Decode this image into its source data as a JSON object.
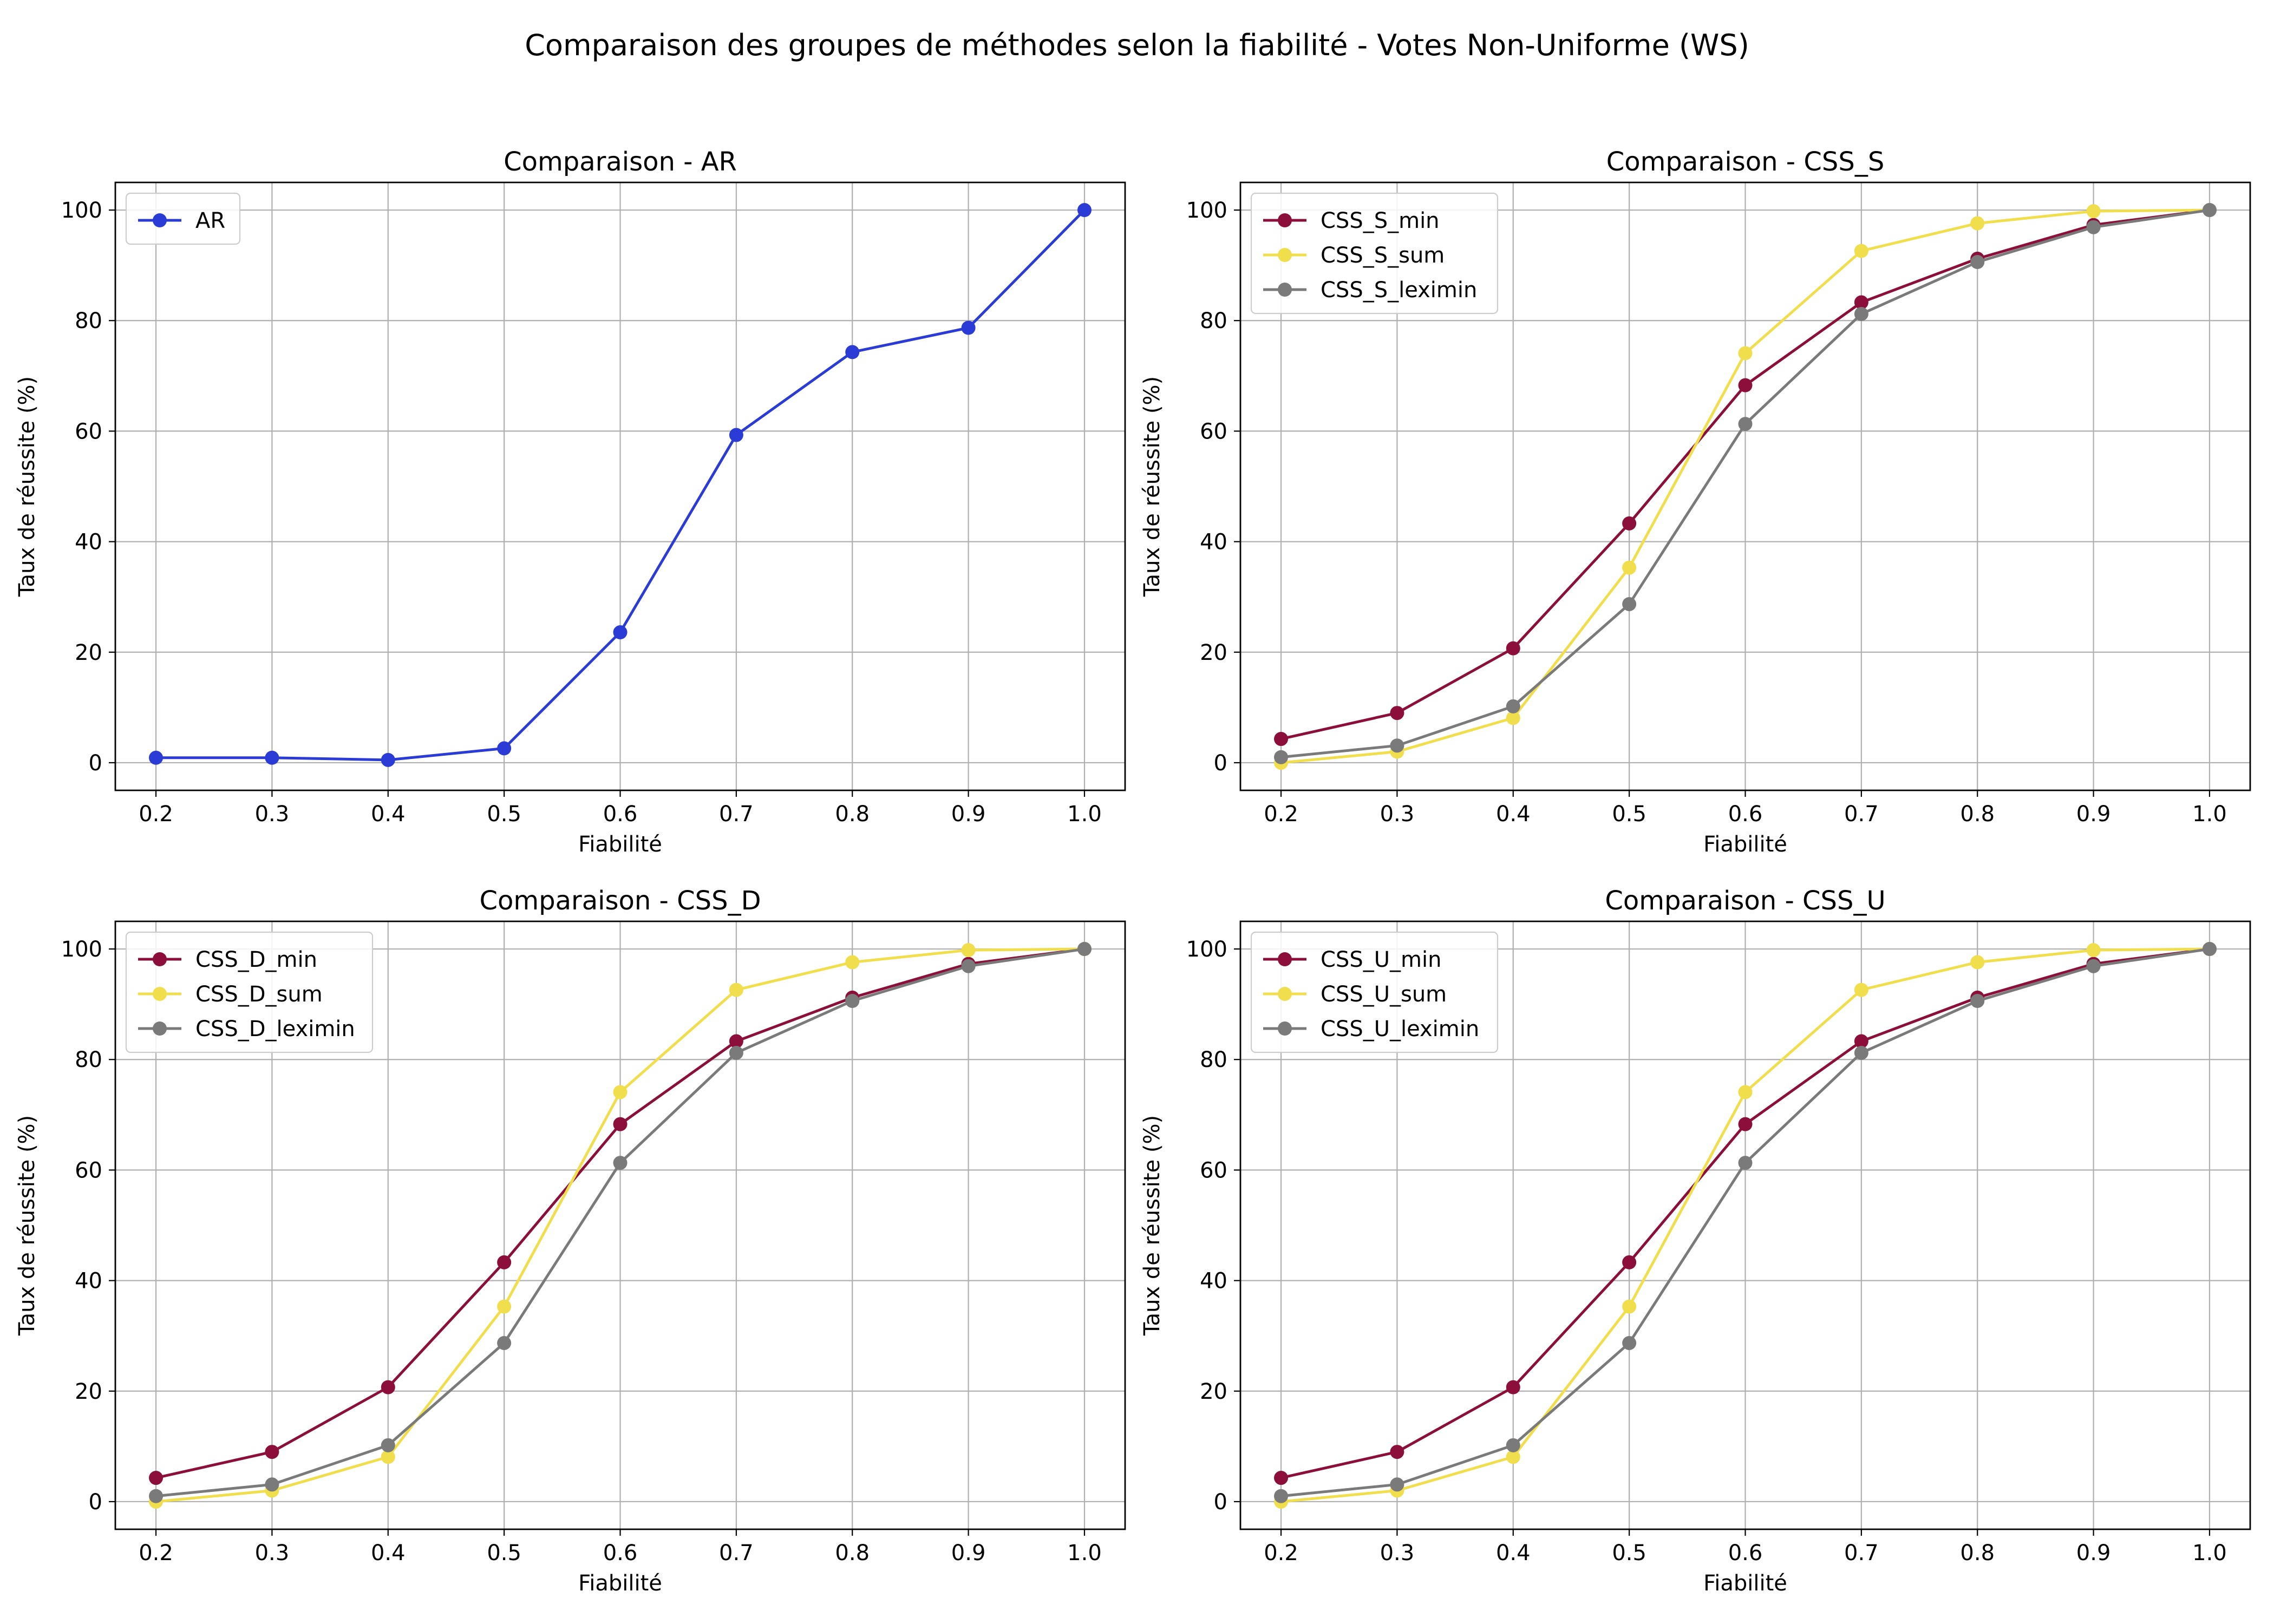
{
  "figure_title": "Comparaison des groupes de méthodes selon la fiabilité - Votes Non-Uniforme (WS)",
  "chart_data": [
    {
      "type": "line",
      "title": "Comparaison - AR",
      "xlabel": "Fiabilité",
      "ylabel": "Taux de réussite (%)",
      "x": [
        0.2,
        0.3,
        0.4,
        0.5,
        0.6,
        0.7,
        0.8,
        0.9,
        1.0
      ],
      "x_ticks": [
        "0.2",
        "0.3",
        "0.4",
        "0.5",
        "0.6",
        "0.7",
        "0.8",
        "0.9",
        "1.0"
      ],
      "y_ticks": [
        "0",
        "20",
        "40",
        "60",
        "80",
        "100"
      ],
      "xlim": [
        0.165,
        1.035
      ],
      "ylim": [
        -5,
        105
      ],
      "grid": true,
      "legend_position": "upper-left",
      "series": [
        {
          "name": "AR",
          "color": "#2b3bd6",
          "values": [
            0.9,
            0.9,
            0.5,
            2.6,
            23.6,
            59.3,
            74.3,
            78.7,
            100
          ]
        }
      ]
    },
    {
      "type": "line",
      "title": "Comparaison - CSS_S",
      "xlabel": "Fiabilité",
      "ylabel": "Taux de réussite (%)",
      "x": [
        0.2,
        0.3,
        0.4,
        0.5,
        0.6,
        0.7,
        0.8,
        0.9,
        1.0
      ],
      "x_ticks": [
        "0.2",
        "0.3",
        "0.4",
        "0.5",
        "0.6",
        "0.7",
        "0.8",
        "0.9",
        "1.0"
      ],
      "y_ticks": [
        "0",
        "20",
        "40",
        "60",
        "80",
        "100"
      ],
      "xlim": [
        0.165,
        1.035
      ],
      "ylim": [
        -5,
        105
      ],
      "grid": true,
      "legend_position": "upper-left",
      "series": [
        {
          "name": "CSS_S_min",
          "color": "#8b0f3a",
          "values": [
            4.3,
            9.0,
            20.7,
            43.3,
            68.3,
            83.3,
            91.2,
            97.3,
            100
          ]
        },
        {
          "name": "CSS_S_sum",
          "color": "#f0de4c",
          "values": [
            0.0,
            2.0,
            8.1,
            35.3,
            74.1,
            92.6,
            97.6,
            99.8,
            100
          ]
        },
        {
          "name": "CSS_S_leximin",
          "color": "#7a7a7a",
          "values": [
            1.0,
            3.1,
            10.2,
            28.7,
            61.3,
            81.2,
            90.6,
            96.9,
            100
          ]
        }
      ]
    },
    {
      "type": "line",
      "title": "Comparaison - CSS_D",
      "xlabel": "Fiabilité",
      "ylabel": "Taux de réussite (%)",
      "x": [
        0.2,
        0.3,
        0.4,
        0.5,
        0.6,
        0.7,
        0.8,
        0.9,
        1.0
      ],
      "x_ticks": [
        "0.2",
        "0.3",
        "0.4",
        "0.5",
        "0.6",
        "0.7",
        "0.8",
        "0.9",
        "1.0"
      ],
      "y_ticks": [
        "0",
        "20",
        "40",
        "60",
        "80",
        "100"
      ],
      "xlim": [
        0.165,
        1.035
      ],
      "ylim": [
        -5,
        105
      ],
      "grid": true,
      "legend_position": "upper-left",
      "series": [
        {
          "name": "CSS_D_min",
          "color": "#8b0f3a",
          "values": [
            4.3,
            9.0,
            20.7,
            43.3,
            68.3,
            83.3,
            91.2,
            97.3,
            100
          ]
        },
        {
          "name": "CSS_D_sum",
          "color": "#f0de4c",
          "values": [
            0.0,
            2.0,
            8.1,
            35.3,
            74.1,
            92.6,
            97.6,
            99.8,
            100
          ]
        },
        {
          "name": "CSS_D_leximin",
          "color": "#7a7a7a",
          "values": [
            1.0,
            3.1,
            10.2,
            28.7,
            61.3,
            81.2,
            90.6,
            96.9,
            100
          ]
        }
      ]
    },
    {
      "type": "line",
      "title": "Comparaison - CSS_U",
      "xlabel": "Fiabilité",
      "ylabel": "Taux de réussite (%)",
      "x": [
        0.2,
        0.3,
        0.4,
        0.5,
        0.6,
        0.7,
        0.8,
        0.9,
        1.0
      ],
      "x_ticks": [
        "0.2",
        "0.3",
        "0.4",
        "0.5",
        "0.6",
        "0.7",
        "0.8",
        "0.9",
        "1.0"
      ],
      "y_ticks": [
        "0",
        "20",
        "40",
        "60",
        "80",
        "100"
      ],
      "xlim": [
        0.165,
        1.035
      ],
      "ylim": [
        -5,
        105
      ],
      "grid": true,
      "legend_position": "upper-left",
      "series": [
        {
          "name": "CSS_U_min",
          "color": "#8b0f3a",
          "values": [
            4.3,
            9.0,
            20.7,
            43.3,
            68.3,
            83.3,
            91.2,
            97.3,
            100
          ]
        },
        {
          "name": "CSS_U_sum",
          "color": "#f0de4c",
          "values": [
            0.0,
            2.0,
            8.1,
            35.3,
            74.1,
            92.6,
            97.6,
            99.8,
            100
          ]
        },
        {
          "name": "CSS_U_leximin",
          "color": "#7a7a7a",
          "values": [
            1.0,
            3.1,
            10.2,
            28.7,
            61.3,
            81.2,
            90.6,
            96.9,
            100
          ]
        }
      ]
    }
  ]
}
